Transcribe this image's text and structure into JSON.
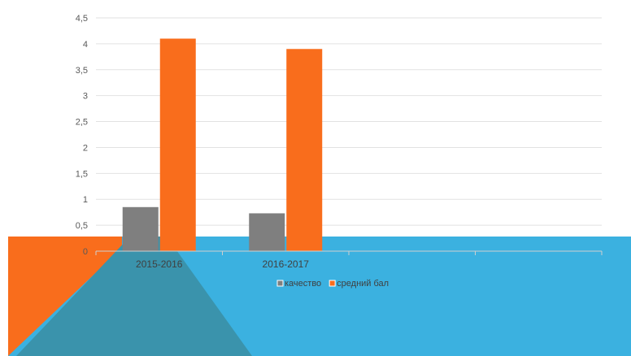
{
  "chart_data": {
    "type": "bar",
    "categories": [
      "2015-2016",
      "2016-2017",
      "",
      ""
    ],
    "series": [
      {
        "name": "качество",
        "values": [
          0.85,
          0.73,
          null,
          null
        ],
        "color": "#7f7f7f"
      },
      {
        "name": "средний бал",
        "values": [
          4.1,
          3.9,
          null,
          null
        ],
        "color": "#f96d1c"
      }
    ],
    "ylim": [
      0,
      4.5
    ],
    "yticks": [
      "0",
      "0,5",
      "1",
      "1,5",
      "2",
      "2,5",
      "3",
      "3,5",
      "4",
      "4,5"
    ],
    "grid": true,
    "legend": "bottom"
  },
  "slide": {
    "band_color": "#3bb1e0",
    "accent_color": "#f96d1c",
    "shade_color": "#3a93ac"
  }
}
